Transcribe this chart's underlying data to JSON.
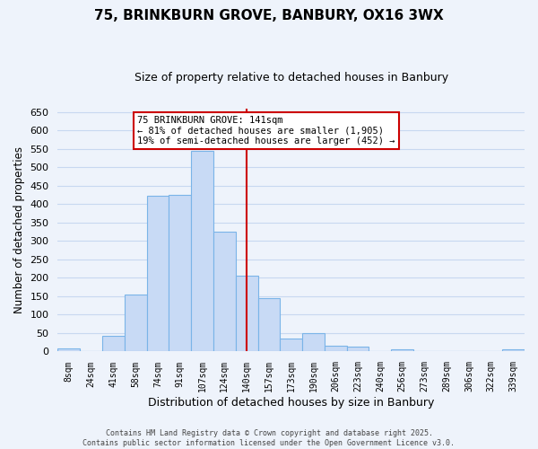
{
  "title": "75, BRINKBURN GROVE, BANBURY, OX16 3WX",
  "subtitle": "Size of property relative to detached houses in Banbury",
  "xlabel": "Distribution of detached houses by size in Banbury",
  "ylabel": "Number of detached properties",
  "bar_labels": [
    "8sqm",
    "24sqm",
    "41sqm",
    "58sqm",
    "74sqm",
    "91sqm",
    "107sqm",
    "124sqm",
    "140sqm",
    "157sqm",
    "173sqm",
    "190sqm",
    "206sqm",
    "223sqm",
    "240sqm",
    "256sqm",
    "273sqm",
    "289sqm",
    "306sqm",
    "322sqm",
    "339sqm"
  ],
  "bar_values": [
    8,
    0,
    42,
    154,
    422,
    424,
    544,
    324,
    205,
    145,
    35,
    50,
    15,
    14,
    0,
    5,
    0,
    0,
    0,
    0,
    6
  ],
  "bar_color": "#c8daf5",
  "bar_edge_color": "#7ab4e8",
  "vline_x_index": 8,
  "vline_color": "#cc0000",
  "ylim": [
    0,
    660
  ],
  "yticks": [
    0,
    50,
    100,
    150,
    200,
    250,
    300,
    350,
    400,
    450,
    500,
    550,
    600,
    650
  ],
  "annotation_title": "75 BRINKBURN GROVE: 141sqm",
  "annotation_line1": "← 81% of detached houses are smaller (1,905)",
  "annotation_line2": "19% of semi-detached houses are larger (452) →",
  "annotation_box_color": "white",
  "annotation_box_edge_color": "#cc0000",
  "grid_color": "#c8d8f0",
  "bg_color": "#eef3fb",
  "footer1": "Contains HM Land Registry data © Crown copyright and database right 2025.",
  "footer2": "Contains public sector information licensed under the Open Government Licence v3.0."
}
